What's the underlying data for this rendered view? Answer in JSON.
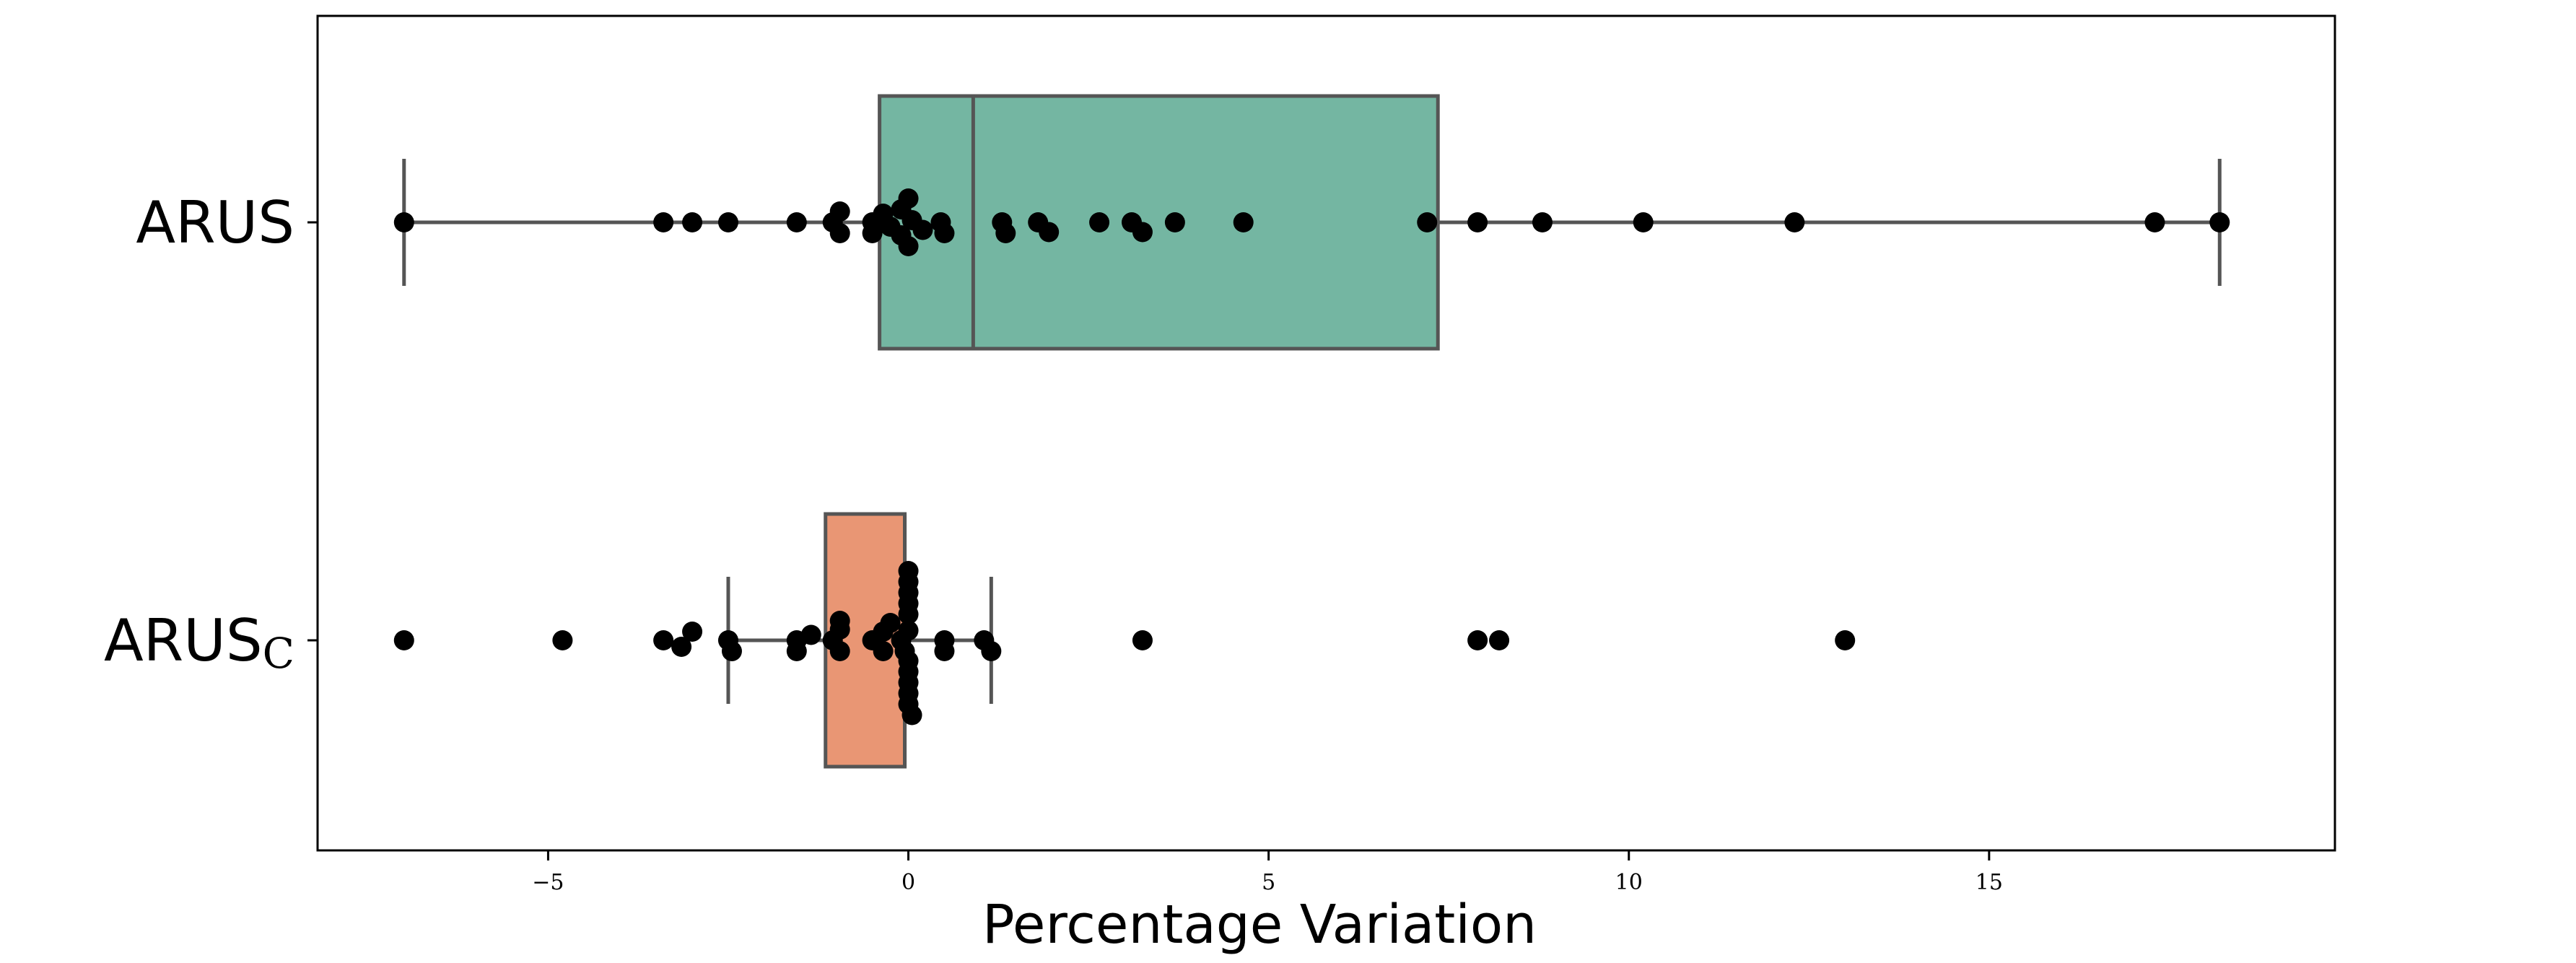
{
  "chart_data": {
    "type": "box",
    "title": "",
    "xlabel": "Percentage Variation",
    "ylabel": "",
    "xlim": [
      -8.2,
      19.8
    ],
    "xticks": [
      -5,
      0,
      5,
      10,
      15
    ],
    "xtick_labels": [
      "−5",
      "0",
      "5",
      "10",
      "15"
    ],
    "grid": false,
    "legend": "none",
    "series": [
      {
        "name": "ARUS",
        "label_main": "ARUS",
        "label_sub": "",
        "color": "#74b6a2",
        "whisker_low": -7.0,
        "q1": -0.4,
        "median": 0.9,
        "q3": 7.35,
        "whisker_high": 18.2,
        "points": [
          {
            "x": -7.0,
            "o": 0
          },
          {
            "x": -3.4,
            "o": 0
          },
          {
            "x": -3.0,
            "o": 0
          },
          {
            "x": -2.5,
            "o": 0
          },
          {
            "x": -1.55,
            "o": 0
          },
          {
            "x": -1.05,
            "o": 0
          },
          {
            "x": -0.95,
            "o": 0.5
          },
          {
            "x": -0.95,
            "o": -0.5
          },
          {
            "x": -0.5,
            "o": 0
          },
          {
            "x": -0.5,
            "o": -0.5
          },
          {
            "x": -0.35,
            "o": 0.4
          },
          {
            "x": -0.25,
            "o": -0.2
          },
          {
            "x": -0.1,
            "o": 0.6
          },
          {
            "x": -0.1,
            "o": -0.6
          },
          {
            "x": 0.0,
            "o": 1.1
          },
          {
            "x": 0.05,
            "o": 0.1
          },
          {
            "x": 0.0,
            "o": -1.1
          },
          {
            "x": 0.2,
            "o": -0.35
          },
          {
            "x": 0.45,
            "o": 0
          },
          {
            "x": 0.5,
            "o": -0.5
          },
          {
            "x": 1.3,
            "o": 0
          },
          {
            "x": 1.35,
            "o": -0.5
          },
          {
            "x": 1.8,
            "o": 0
          },
          {
            "x": 1.95,
            "o": -0.45
          },
          {
            "x": 2.65,
            "o": 0
          },
          {
            "x": 3.1,
            "o": 0
          },
          {
            "x": 3.25,
            "o": -0.45
          },
          {
            "x": 3.7,
            "o": 0
          },
          {
            "x": 4.65,
            "o": 0
          },
          {
            "x": 7.2,
            "o": 0
          },
          {
            "x": 7.9,
            "o": 0
          },
          {
            "x": 8.8,
            "o": 0
          },
          {
            "x": 10.2,
            "o": 0
          },
          {
            "x": 12.3,
            "o": 0
          },
          {
            "x": 17.3,
            "o": 0
          },
          {
            "x": 18.2,
            "o": 0
          }
        ]
      },
      {
        "name": "ARUS_C",
        "label_main": "ARUS",
        "label_sub": "C",
        "color": "#e99674",
        "whisker_low": -2.5,
        "q1": -1.15,
        "median": -0.05,
        "q3": -0.05,
        "whisker_high": 1.15,
        "points": [
          {
            "x": -7.0,
            "o": 0
          },
          {
            "x": -4.8,
            "o": 0
          },
          {
            "x": -3.4,
            "o": 0
          },
          {
            "x": -3.0,
            "o": 0.4
          },
          {
            "x": -3.15,
            "o": -0.3
          },
          {
            "x": -2.5,
            "o": 0
          },
          {
            "x": -2.45,
            "o": -0.5
          },
          {
            "x": -1.55,
            "o": 0
          },
          {
            "x": -1.55,
            "o": -0.5
          },
          {
            "x": -1.35,
            "o": 0.25
          },
          {
            "x": -1.05,
            "o": 0
          },
          {
            "x": -0.95,
            "o": 0.5
          },
          {
            "x": -0.95,
            "o": 0.9
          },
          {
            "x": -0.95,
            "o": -0.5
          },
          {
            "x": -0.5,
            "o": 0
          },
          {
            "x": -0.35,
            "o": 0.4
          },
          {
            "x": -0.35,
            "o": -0.5
          },
          {
            "x": -0.25,
            "o": 0.8
          },
          {
            "x": -0.1,
            "o": 0
          },
          {
            "x": -0.05,
            "o": -0.5
          },
          {
            "x": 0.0,
            "o": 3.2
          },
          {
            "x": 0.0,
            "o": 2.7
          },
          {
            "x": 0.0,
            "o": 2.2
          },
          {
            "x": 0.0,
            "o": 1.7
          },
          {
            "x": 0.0,
            "o": 1.2
          },
          {
            "x": 0.0,
            "o": 0.45
          },
          {
            "x": 0.0,
            "o": -0.95
          },
          {
            "x": 0.0,
            "o": -1.45
          },
          {
            "x": 0.0,
            "o": -1.95
          },
          {
            "x": 0.0,
            "o": -2.45
          },
          {
            "x": 0.0,
            "o": -2.95
          },
          {
            "x": 0.05,
            "o": -3.45
          },
          {
            "x": 0.5,
            "o": 0
          },
          {
            "x": 0.5,
            "o": -0.5
          },
          {
            "x": 1.05,
            "o": 0
          },
          {
            "x": 1.15,
            "o": -0.5
          },
          {
            "x": 3.25,
            "o": 0
          },
          {
            "x": 7.9,
            "o": 0
          },
          {
            "x": 8.2,
            "o": 0
          },
          {
            "x": 13.0,
            "o": 0
          }
        ]
      }
    ]
  }
}
